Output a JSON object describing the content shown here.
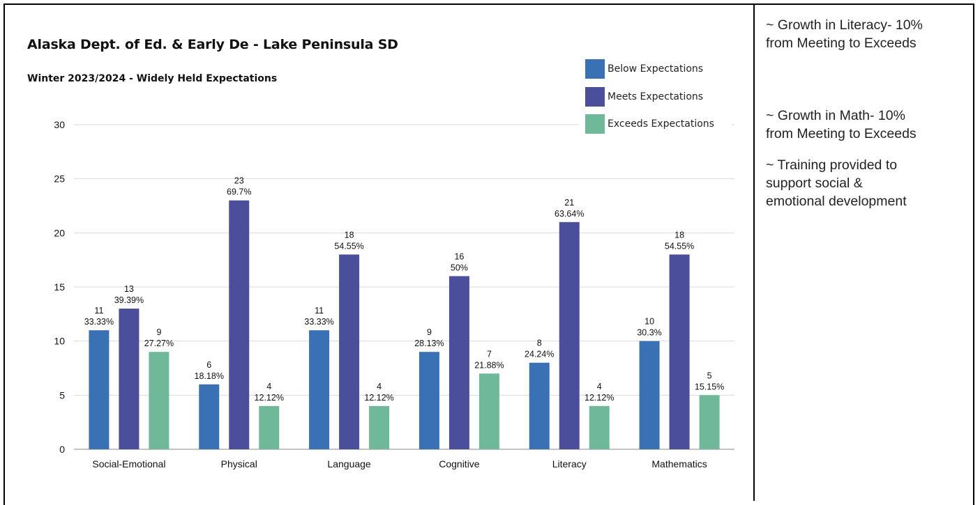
{
  "chart_data": {
    "type": "bar",
    "title": "Alaska Dept. of Ed. & Early De - Lake Peninsula SD",
    "subtitle": "Winter 2023/2024 - Widely Held Expectations",
    "xlabel": "",
    "ylabel": "",
    "ylim": [
      0,
      30
    ],
    "yticks": [
      0,
      5,
      10,
      15,
      20,
      25,
      30
    ],
    "grid": true,
    "legend_position": "top-right",
    "categories": [
      "Social-Emotional",
      "Physical",
      "Language",
      "Cognitive",
      "Literacy",
      "Mathematics"
    ],
    "series": [
      {
        "name": "Below Expectations",
        "color": "#3a70b4",
        "values": [
          11,
          6,
          11,
          9,
          8,
          10
        ],
        "percent_labels": [
          "33.33%",
          "18.18%",
          "33.33%",
          "28.13%",
          "24.24%",
          "30.3%"
        ]
      },
      {
        "name": "Meets Expectations",
        "color": "#4b4e9a",
        "values": [
          13,
          23,
          18,
          16,
          21,
          18
        ],
        "percent_labels": [
          "39.39%",
          "69.7%",
          "54.55%",
          "50%",
          "63.64%",
          "54.55%"
        ]
      },
      {
        "name": "Exceeds Expectations",
        "color": "#6fb99a",
        "values": [
          9,
          4,
          4,
          7,
          4,
          5
        ],
        "percent_labels": [
          "27.27%",
          "12.12%",
          "12.12%",
          "21.88%",
          "12.12%",
          "15.15%"
        ]
      }
    ]
  },
  "notes": [
    {
      "lines": [
        "~ Growth in Literacy- 10%",
        "from Meeting to Exceeds"
      ]
    },
    {
      "lines": [
        "~ Growth in Math- 10%",
        "from Meeting to Exceeds"
      ]
    },
    {
      "lines": [
        "~ Training provided to",
        "support social &",
        "emotional development"
      ]
    }
  ]
}
